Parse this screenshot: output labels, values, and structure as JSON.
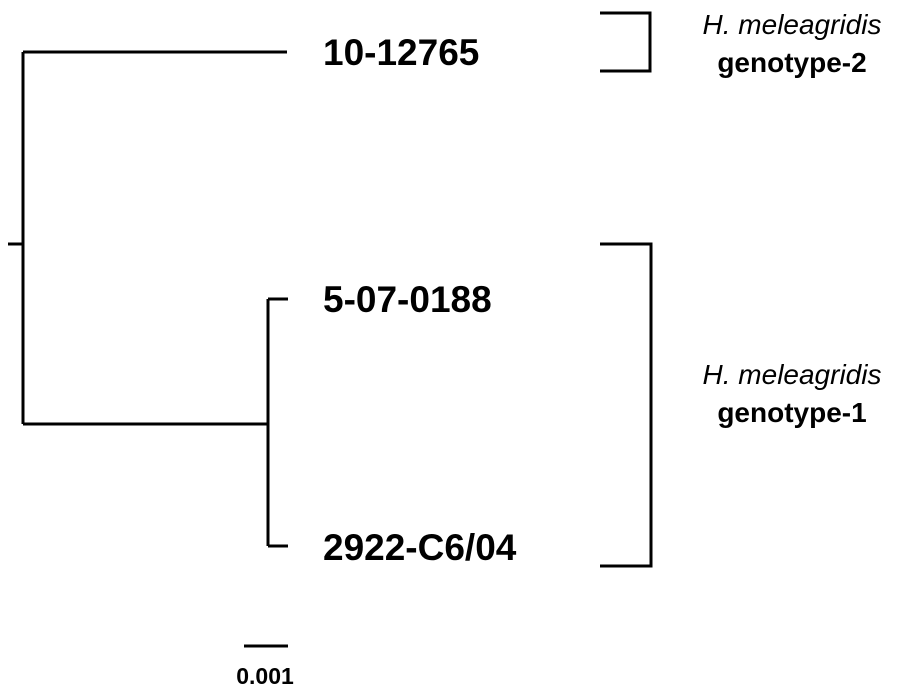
{
  "tree": {
    "taxa": [
      {
        "id": "t1",
        "label": "10-12765"
      },
      {
        "id": "t2",
        "label": "5-07-0188"
      },
      {
        "id": "t3",
        "label": "2922-C6/04"
      }
    ],
    "scale_label": "0.001"
  },
  "groups": [
    {
      "species": "H. meleagridis",
      "genotype": "genotype-2"
    },
    {
      "species": "H. meleagridis",
      "genotype": "genotype-1"
    }
  ]
}
